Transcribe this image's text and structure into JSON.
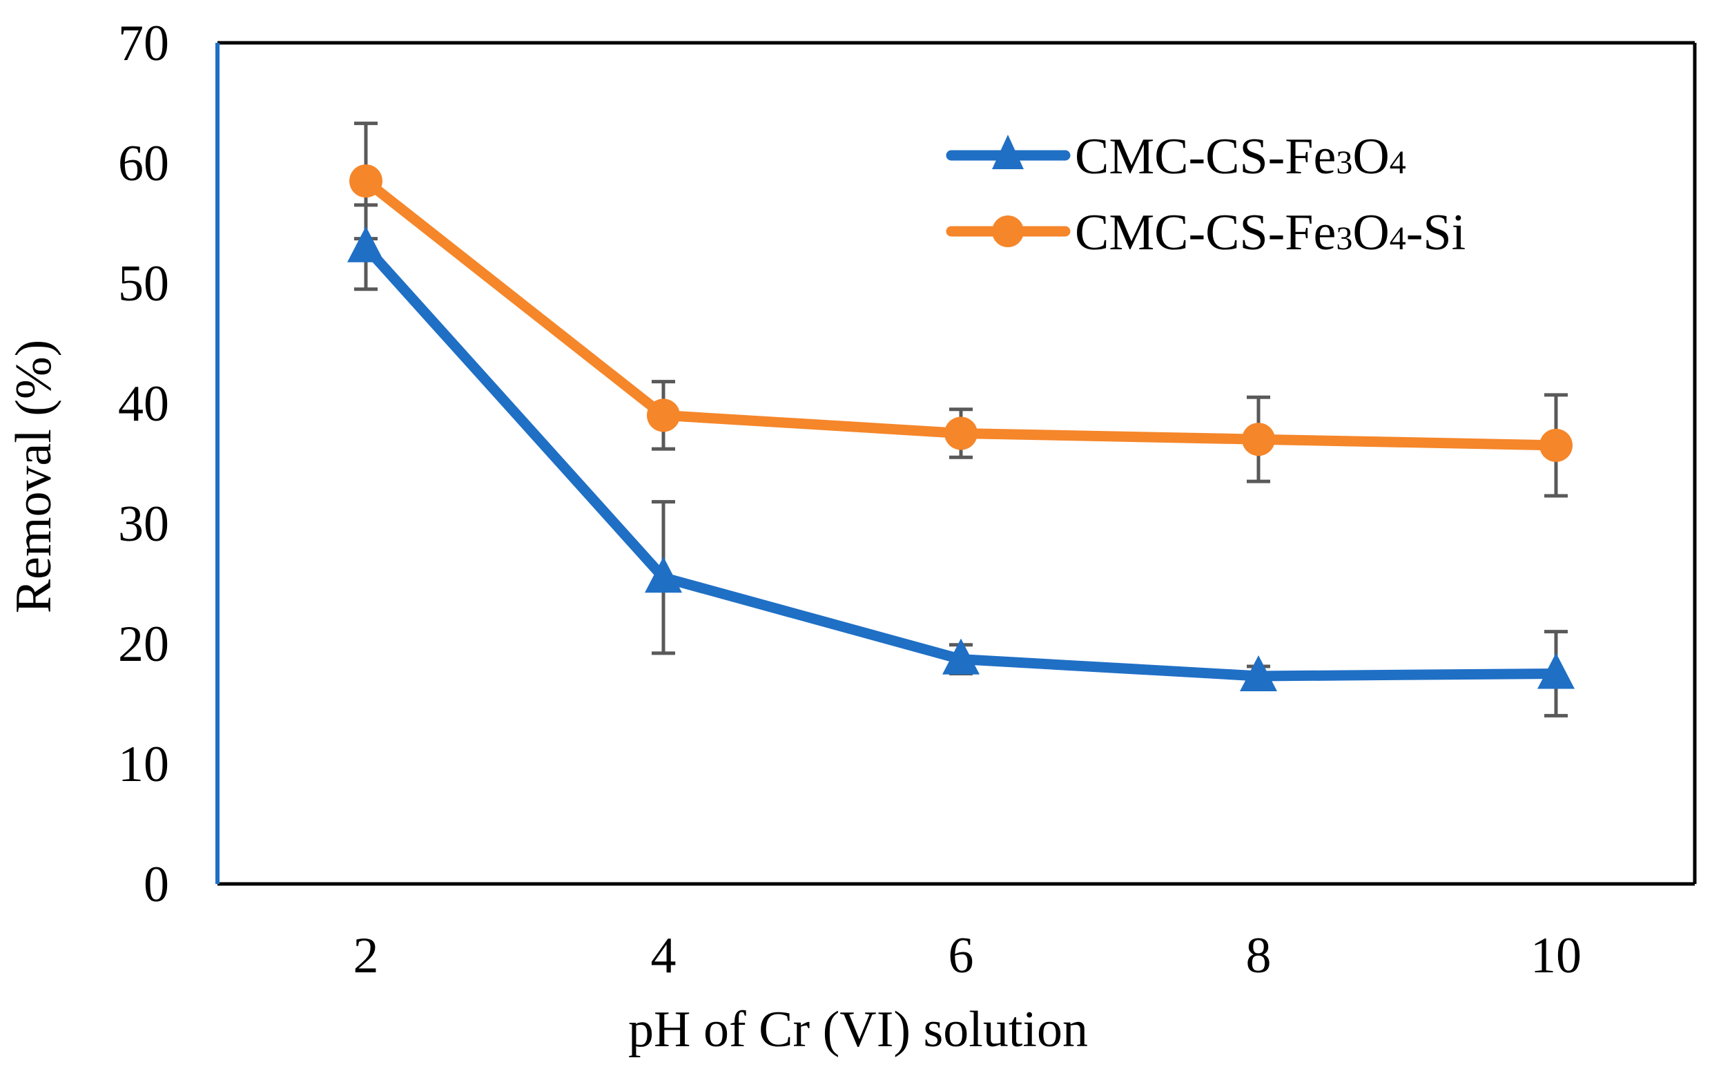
{
  "chart_data": {
    "type": "line",
    "title": "",
    "xlabel": "pH of Cr (VI) solution",
    "ylabel": "Removal (%)",
    "categories": [
      "2",
      "4",
      "6",
      "8",
      "10"
    ],
    "yticks": [
      "0",
      "10",
      "20",
      "30",
      "40",
      "50",
      "60",
      "70"
    ],
    "ylim": [
      0,
      70
    ],
    "grid": false,
    "legend_position": "top-right",
    "series": [
      {
        "name": "CMC-CS-Fe3O4",
        "label_parts": {
          "base": "CMC-CS-Fe",
          "sub1": "3",
          "mid": "O",
          "sub2": "4",
          "suffix": ""
        },
        "marker": "triangle",
        "color": "#1f6fc5",
        "values": [
          53.0,
          25.5,
          18.7,
          17.3,
          17.5
        ],
        "errors": [
          3.5,
          6.3,
          1.2,
          0.8,
          3.5
        ]
      },
      {
        "name": "CMC-CS-Fe3O4-Si",
        "label_parts": {
          "base": "CMC-CS-Fe",
          "sub1": "3",
          "mid": "O",
          "sub2": "4",
          "suffix": "-Si"
        },
        "marker": "circle",
        "color": "#f5862a",
        "values": [
          58.5,
          39.0,
          37.5,
          37.0,
          36.5
        ],
        "errors": [
          4.8,
          2.8,
          2.0,
          3.5,
          4.2
        ]
      }
    ],
    "errorbar_color": "#595959",
    "axis_color": "#000000",
    "left_axis_color": "#1f6fc5"
  }
}
